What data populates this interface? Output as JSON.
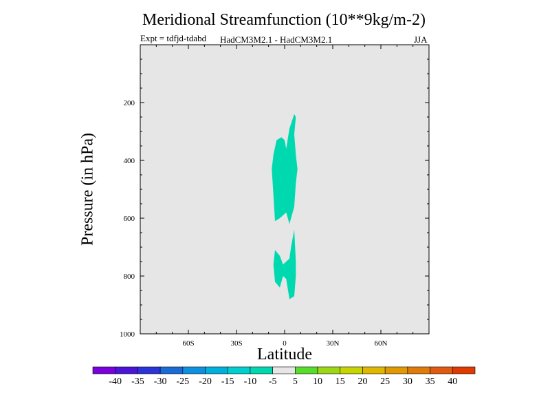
{
  "chart_data": {
    "type": "contour",
    "title": "Meridional Streamfunction (10**9kg/m-2)",
    "subtitle_left": "Expt = tdfjd-tdabd",
    "subtitle_center": "HadCM3M2.1 - HadCM3M2.1",
    "subtitle_right": "JJA",
    "xlabel": "Latitude",
    "ylabel": "Pressure (in hPa)",
    "xlim": [
      -90,
      90
    ],
    "ylim": [
      1000,
      0
    ],
    "x_ticks": [
      {
        "value": -60,
        "label": "60S"
      },
      {
        "value": -30,
        "label": "30S"
      },
      {
        "value": 0,
        "label": "0"
      },
      {
        "value": 30,
        "label": "30N"
      },
      {
        "value": 60,
        "label": "60N"
      }
    ],
    "y_ticks": [
      {
        "value": 200,
        "label": "200"
      },
      {
        "value": 400,
        "label": "400"
      },
      {
        "value": 600,
        "label": "600"
      },
      {
        "value": 800,
        "label": "800"
      },
      {
        "value": 1000,
        "label": "1000"
      }
    ],
    "background_color": "#e6e6e6",
    "regions": [
      {
        "name": "upper-cell",
        "range": [
          -10,
          -5
        ],
        "color": "#00d9b0",
        "polygon": [
          [
            7,
            250
          ],
          [
            6,
            240
          ],
          [
            3,
            290
          ],
          [
            1,
            360
          ],
          [
            0,
            330
          ],
          [
            -2,
            320
          ],
          [
            -5,
            330
          ],
          [
            -7,
            380
          ],
          [
            -8,
            430
          ],
          [
            -7,
            520
          ],
          [
            -6,
            610
          ],
          [
            -3,
            600
          ],
          [
            1,
            580
          ],
          [
            3,
            620
          ],
          [
            6,
            560
          ],
          [
            7,
            480
          ],
          [
            8,
            430
          ],
          [
            7,
            380
          ],
          [
            6,
            310
          ]
        ]
      },
      {
        "name": "lower-cell",
        "range": [
          -10,
          -5
        ],
        "color": "#00d9b0",
        "polygon": [
          [
            6,
            640
          ],
          [
            4,
            700
          ],
          [
            3,
            740
          ],
          [
            -1,
            760
          ],
          [
            -3,
            730
          ],
          [
            -6,
            710
          ],
          [
            -7,
            760
          ],
          [
            -6,
            820
          ],
          [
            -3,
            840
          ],
          [
            -1,
            800
          ],
          [
            1,
            810
          ],
          [
            3,
            880
          ],
          [
            6,
            870
          ],
          [
            7,
            800
          ],
          [
            7,
            750
          ]
        ]
      }
    ],
    "colorbar": {
      "colors": [
        "#7a00dd",
        "#4c14d8",
        "#2a34d8",
        "#1a6ad8",
        "#0d90e0",
        "#00b0dc",
        "#00cfcf",
        "#00d9b0",
        "#e6e6e6",
        "#58dc2a",
        "#9cd814",
        "#c8d400",
        "#e0b800",
        "#e09a00",
        "#e07a08",
        "#e05a10",
        "#e03a00"
      ],
      "tick_labels": [
        "-40",
        "-35",
        "-30",
        "-25",
        "-20",
        "-15",
        "-10",
        "-5",
        "5",
        "10",
        "15",
        "20",
        "25",
        "30",
        "35",
        "40"
      ]
    }
  }
}
